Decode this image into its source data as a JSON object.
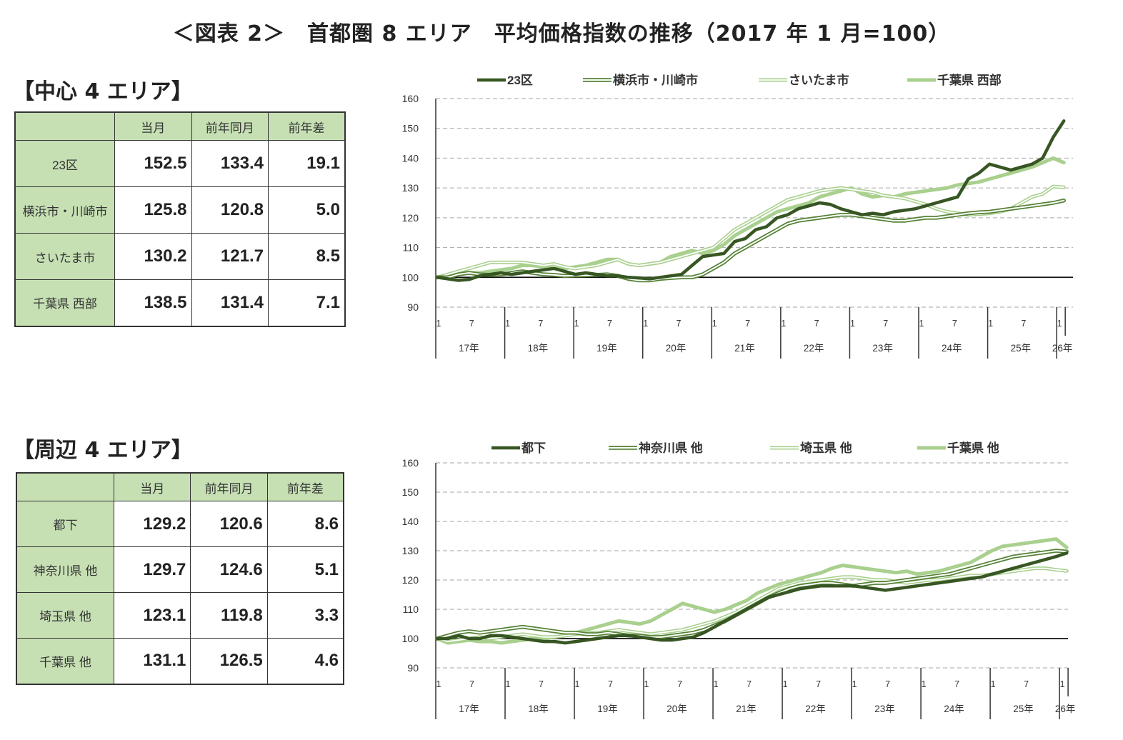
{
  "title": "＜図表 2＞　首都圏 8 エリア　平均価格指数の推移（2017 年 1 月=100）",
  "panels": [
    {
      "section_title": "【中心 4 エリア】",
      "table": {
        "headers": [
          "",
          "当月",
          "前年同月",
          "前年差"
        ],
        "rows": [
          {
            "label": "23区",
            "current": "152.5",
            "prev": "133.4",
            "diff": "19.1"
          },
          {
            "label": "横浜市・川崎市",
            "current": "125.8",
            "prev": "120.8",
            "diff": "5.0"
          },
          {
            "label": "さいたま市",
            "current": "130.2",
            "prev": "121.7",
            "diff": "8.5"
          },
          {
            "label": "千葉県 西部",
            "current": "138.5",
            "prev": "131.4",
            "diff": "7.1"
          }
        ]
      }
    },
    {
      "section_title": "【周辺 4 エリア】",
      "table": {
        "headers": [
          "",
          "当月",
          "前年同月",
          "前年差"
        ],
        "rows": [
          {
            "label": "都下",
            "current": "129.2",
            "prev": "120.6",
            "diff": "8.6"
          },
          {
            "label": "神奈川県 他",
            "current": "129.7",
            "prev": "124.6",
            "diff": "5.1"
          },
          {
            "label": "埼玉県 他",
            "current": "123.1",
            "prev": "119.8",
            "diff": "3.3"
          },
          {
            "label": "千葉県 他",
            "current": "131.1",
            "prev": "126.5",
            "diff": "4.6"
          }
        ]
      }
    }
  ],
  "colors": {
    "dark": "#375623",
    "mid": "#548235",
    "light": "#c5e0b4",
    "lightgreen": "#a9d08e",
    "grid": "#a6a6a6"
  },
  "chart_data": [
    {
      "type": "line",
      "ylim": [
        90,
        160
      ],
      "yticks": [
        90,
        100,
        110,
        120,
        130,
        140,
        150,
        160
      ],
      "baseline": 100,
      "month_ticks": [
        "1",
        "7"
      ],
      "year_labels": [
        "17年",
        "18年",
        "19年",
        "20年",
        "21年",
        "22年",
        "23年",
        "24年",
        "25年",
        "26年"
      ],
      "series": [
        {
          "name": "23区",
          "style": "dark",
          "values": [
            100,
            99.5,
            99,
            99.3,
            100.5,
            101,
            101.5,
            101,
            101.5,
            102,
            102.5,
            103,
            102,
            101,
            101.5,
            101,
            100.5,
            100.5,
            100,
            99.8,
            99.5,
            100,
            100.5,
            101,
            104,
            107,
            107.5,
            108,
            112,
            113,
            116,
            117,
            120,
            121,
            123,
            124,
            125,
            124.5,
            123,
            122,
            121,
            121.5,
            121,
            122,
            122.5,
            123,
            124,
            125,
            126,
            127,
            133,
            135,
            138,
            137,
            136,
            137,
            138,
            140,
            147,
            152.5
          ]
        },
        {
          "name": "横浜市・川崎市",
          "style": "double-mid",
          "values": [
            100,
            100,
            101,
            101.5,
            101,
            100.8,
            101,
            101.5,
            102,
            101.5,
            101,
            100.8,
            100.5,
            100.6,
            100.7,
            100.8,
            101,
            100.5,
            99.5,
            99,
            99,
            99.5,
            99.8,
            100,
            100,
            101,
            103,
            105,
            108,
            110,
            112,
            114,
            116,
            118,
            119,
            119.5,
            120,
            120.5,
            121,
            121,
            120.5,
            120,
            119.5,
            119,
            119,
            119.5,
            120,
            120,
            120.5,
            121,
            121.5,
            121.8,
            122,
            122.5,
            123,
            123.5,
            124,
            124.5,
            125,
            125.8
          ]
        },
        {
          "name": "さいたま市",
          "style": "double-light",
          "values": [
            100,
            101,
            102,
            103,
            104,
            105,
            105,
            105,
            105,
            104.5,
            104,
            104.5,
            103.5,
            103,
            103.5,
            104,
            105,
            106,
            104.5,
            104,
            104.5,
            105,
            106,
            107,
            108,
            109,
            110,
            113,
            116,
            118,
            120,
            122,
            124,
            126,
            127,
            128,
            129,
            129.5,
            130,
            129.5,
            129,
            128.5,
            127.5,
            127,
            126.5,
            125.5,
            124.5,
            123,
            122,
            121.5,
            121,
            121.2,
            121.5,
            122,
            123,
            125,
            127,
            128,
            130.5,
            130.2
          ]
        },
        {
          "name": "千葉県 西部",
          "style": "thick-light",
          "values": [
            100,
            100,
            101,
            101.5,
            101.5,
            102,
            102.5,
            103,
            104,
            104,
            103.5,
            103,
            103,
            103.5,
            104,
            105,
            106,
            106,
            104.5,
            104,
            104.5,
            105,
            107,
            108,
            109,
            108,
            109,
            111,
            114,
            116,
            118,
            120,
            122,
            123,
            124,
            125,
            127,
            128,
            129,
            130,
            128,
            127,
            127.5,
            127,
            128,
            128.5,
            129,
            129.5,
            130,
            131,
            131.5,
            132,
            133,
            134,
            135,
            136,
            137,
            138.5,
            140,
            138.5
          ]
        }
      ]
    },
    {
      "type": "line",
      "ylim": [
        90,
        160
      ],
      "yticks": [
        90,
        100,
        110,
        120,
        130,
        140,
        150,
        160
      ],
      "baseline": 100,
      "month_ticks": [
        "1",
        "7"
      ],
      "year_labels": [
        "17年",
        "18年",
        "19年",
        "20年",
        "21年",
        "22年",
        "23年",
        "24年",
        "25年",
        "26年"
      ],
      "series": [
        {
          "name": "都下",
          "style": "dark",
          "values": [
            100,
            100,
            101,
            100,
            100,
            101,
            101,
            100.5,
            100,
            99.5,
            99,
            99,
            98.5,
            99,
            99.5,
            100,
            100.5,
            101,
            101,
            100.5,
            100,
            99.5,
            99.5,
            100,
            100.5,
            102,
            104,
            106,
            108,
            110,
            112,
            114,
            115,
            116,
            117,
            117.5,
            118,
            118,
            118,
            118,
            117.5,
            117,
            116.5,
            117,
            117.5,
            118,
            118.5,
            119,
            119.5,
            120,
            120.5,
            121,
            122,
            123,
            124,
            125,
            126,
            127,
            128,
            129.2
          ]
        },
        {
          "name": "神奈川県 他",
          "style": "double-mid",
          "values": [
            100,
            101,
            102,
            102.5,
            102,
            102.5,
            103,
            103.5,
            104,
            103.5,
            103,
            102.5,
            102,
            102,
            101.5,
            101.5,
            102,
            101.5,
            101,
            101,
            100.5,
            100.5,
            101,
            101.5,
            102,
            103,
            104.5,
            106,
            108,
            110,
            112,
            114,
            115.5,
            117,
            118,
            118.5,
            119,
            119,
            118.5,
            118,
            118.5,
            119,
            119,
            119.5,
            120,
            120.5,
            121,
            121.5,
            122,
            123,
            124,
            125,
            126,
            127,
            128,
            128.5,
            129,
            129.5,
            130,
            129.7
          ]
        },
        {
          "name": "埼玉県 他",
          "style": "double-light",
          "values": [
            100,
            99,
            99.5,
            100,
            100.5,
            100,
            100.5,
            101,
            101.5,
            101,
            100.5,
            100.5,
            101,
            101.5,
            102,
            102,
            102.5,
            103,
            102.5,
            102,
            101.5,
            102,
            102.5,
            103,
            104,
            105,
            106,
            107.5,
            109,
            111,
            113,
            115,
            117,
            118,
            119,
            119.5,
            120,
            120.5,
            121,
            121,
            120.5,
            120,
            120,
            119.5,
            119,
            119.5,
            120,
            120,
            120.5,
            121,
            121.5,
            121.5,
            122,
            122.5,
            123,
            123.5,
            124,
            124,
            123.5,
            123.1
          ]
        },
        {
          "name": "千葉県 他",
          "style": "thick-light",
          "values": [
            100,
            98.5,
            99,
            99.5,
            99,
            99,
            98.5,
            99,
            99.5,
            100,
            100,
            100.5,
            101,
            102,
            103,
            104,
            105,
            106,
            105.5,
            105,
            106,
            108,
            110,
            112,
            111,
            110,
            109,
            110,
            111.5,
            113,
            115.5,
            117,
            118.5,
            119.5,
            120.5,
            121.5,
            122.5,
            124,
            125,
            124.5,
            124,
            123.5,
            123,
            122.5,
            123,
            122,
            122.5,
            123,
            124,
            125,
            126,
            128,
            130,
            131.5,
            132,
            132.5,
            133,
            133.5,
            134,
            131.1
          ]
        }
      ]
    }
  ]
}
